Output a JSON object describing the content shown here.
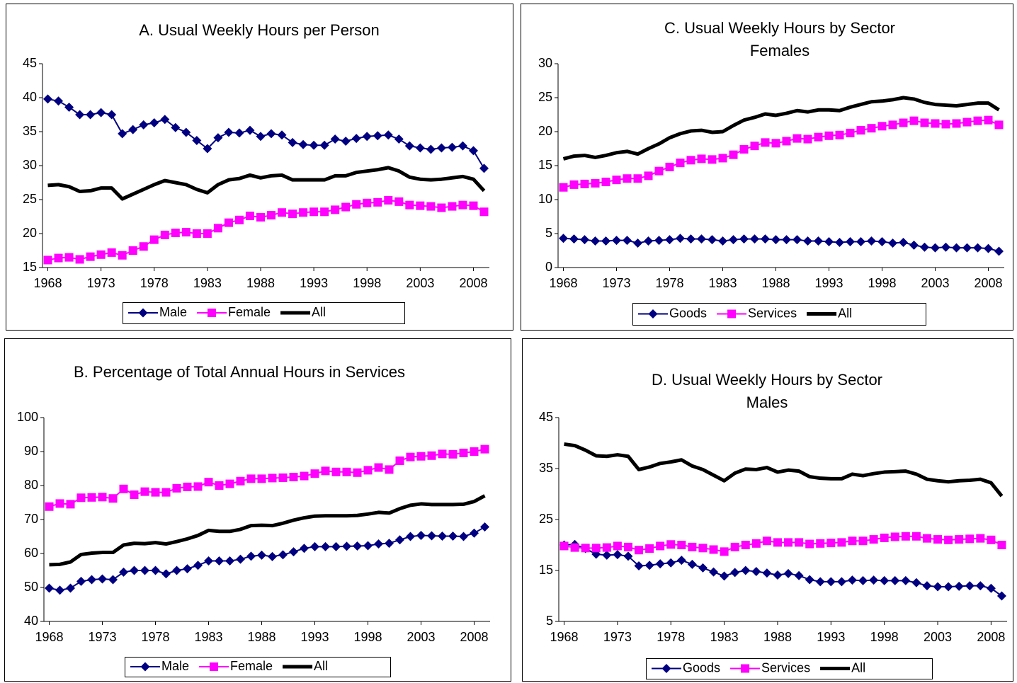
{
  "chart_data": [
    {
      "type": "line",
      "title": "A. Usual Weekly Hours per Person",
      "x": [
        1968,
        1969,
        1970,
        1971,
        1972,
        1973,
        1974,
        1975,
        1976,
        1977,
        1978,
        1979,
        1980,
        1981,
        1982,
        1983,
        1984,
        1985,
        1986,
        1987,
        1988,
        1989,
        1990,
        1991,
        1992,
        1993,
        1994,
        1995,
        1996,
        1997,
        1998,
        1999,
        2000,
        2001,
        2002,
        2003,
        2004,
        2005,
        2006,
        2007,
        2008,
        2009
      ],
      "xlim": [
        1967.5,
        2009.5
      ],
      "xticks": [
        1968,
        1973,
        1978,
        1983,
        1988,
        1993,
        1998,
        2003,
        2008
      ],
      "ylim": [
        15,
        45
      ],
      "yticks": [
        15,
        20,
        25,
        30,
        35,
        40,
        45
      ],
      "series": [
        {
          "name": "Male",
          "color": "#000080",
          "marker": "diamond",
          "values": [
            39.8,
            39.5,
            38.6,
            37.5,
            37.5,
            37.8,
            37.5,
            34.7,
            35.3,
            36.0,
            36.3,
            36.8,
            35.6,
            34.9,
            33.7,
            32.5,
            34.1,
            34.9,
            34.8,
            35.2,
            34.3,
            34.7,
            34.5,
            33.4,
            33.1,
            33.0,
            33.0,
            33.9,
            33.6,
            34.0,
            34.3,
            34.4,
            34.5,
            33.9,
            32.9,
            32.6,
            32.4,
            32.6,
            32.7,
            32.9,
            32.2,
            29.6
          ]
        },
        {
          "name": "Female",
          "color": "#ff00ff",
          "marker": "square",
          "values": [
            16.1,
            16.4,
            16.5,
            16.2,
            16.6,
            16.9,
            17.2,
            16.8,
            17.5,
            18.1,
            19.1,
            19.8,
            20.1,
            20.2,
            20.0,
            20.0,
            20.8,
            21.6,
            22.0,
            22.6,
            22.4,
            22.7,
            23.1,
            22.9,
            23.1,
            23.2,
            23.2,
            23.5,
            23.9,
            24.3,
            24.5,
            24.6,
            24.9,
            24.7,
            24.2,
            24.1,
            24.0,
            23.8,
            24.0,
            24.2,
            24.1,
            23.2
          ]
        },
        {
          "name": "All",
          "color": "#000000",
          "marker": "none",
          "values": [
            27.1,
            27.2,
            26.9,
            26.2,
            26.3,
            26.7,
            26.7,
            25.1,
            25.8,
            26.5,
            27.2,
            27.8,
            27.5,
            27.2,
            26.5,
            26.0,
            27.2,
            27.9,
            28.1,
            28.6,
            28.2,
            28.5,
            28.6,
            27.9,
            27.9,
            27.9,
            27.9,
            28.5,
            28.5,
            29.0,
            29.2,
            29.4,
            29.7,
            29.2,
            28.3,
            28.0,
            27.9,
            28.0,
            28.2,
            28.4,
            28.0,
            26.3
          ]
        }
      ]
    },
    {
      "type": "line",
      "title": "C. Usual Weekly Hours by Sector",
      "subtitle": "Females",
      "x": [
        1968,
        1969,
        1970,
        1971,
        1972,
        1973,
        1974,
        1975,
        1976,
        1977,
        1978,
        1979,
        1980,
        1981,
        1982,
        1983,
        1984,
        1985,
        1986,
        1987,
        1988,
        1989,
        1990,
        1991,
        1992,
        1993,
        1994,
        1995,
        1996,
        1997,
        1998,
        1999,
        2000,
        2001,
        2002,
        2003,
        2004,
        2005,
        2006,
        2007,
        2008,
        2009
      ],
      "xlim": [
        1967.5,
        2009.5
      ],
      "xticks": [
        1968,
        1973,
        1978,
        1983,
        1988,
        1993,
        1998,
        2003,
        2008
      ],
      "ylim": [
        0,
        30
      ],
      "yticks": [
        0,
        5,
        10,
        15,
        20,
        25,
        30
      ],
      "series": [
        {
          "name": "Goods",
          "color": "#000080",
          "marker": "diamond",
          "values": [
            4.3,
            4.2,
            4.1,
            3.9,
            3.9,
            4.0,
            4.0,
            3.6,
            3.9,
            4.0,
            4.1,
            4.3,
            4.2,
            4.2,
            4.1,
            3.9,
            4.1,
            4.2,
            4.2,
            4.2,
            4.1,
            4.1,
            4.1,
            3.9,
            3.9,
            3.8,
            3.7,
            3.8,
            3.8,
            3.9,
            3.8,
            3.6,
            3.7,
            3.3,
            3.0,
            2.9,
            3.0,
            2.9,
            2.9,
            2.9,
            2.8,
            2.4
          ]
        },
        {
          "name": "Services",
          "color": "#ff00ff",
          "marker": "square",
          "values": [
            11.8,
            12.2,
            12.3,
            12.4,
            12.6,
            12.9,
            13.1,
            13.1,
            13.5,
            14.2,
            14.8,
            15.4,
            15.8,
            16.0,
            15.9,
            16.1,
            16.6,
            17.4,
            17.9,
            18.4,
            18.3,
            18.6,
            19.0,
            18.9,
            19.2,
            19.4,
            19.5,
            19.8,
            20.2,
            20.5,
            20.8,
            21.0,
            21.3,
            21.6,
            21.3,
            21.2,
            21.1,
            21.2,
            21.4,
            21.6,
            21.7,
            21.0
          ]
        },
        {
          "name": "All",
          "color": "#000000",
          "marker": "none",
          "values": [
            16.0,
            16.4,
            16.5,
            16.2,
            16.5,
            16.9,
            17.1,
            16.7,
            17.5,
            18.2,
            19.1,
            19.7,
            20.1,
            20.2,
            19.9,
            20.0,
            20.9,
            21.7,
            22.1,
            22.6,
            22.4,
            22.7,
            23.1,
            22.9,
            23.2,
            23.2,
            23.1,
            23.6,
            24.0,
            24.4,
            24.5,
            24.7,
            25.0,
            24.8,
            24.3,
            24.0,
            23.9,
            23.8,
            24.0,
            24.2,
            24.2,
            23.2
          ]
        }
      ]
    },
    {
      "type": "line",
      "title": "B. Percentage of Total Annual Hours in Services",
      "x": [
        1968,
        1969,
        1970,
        1971,
        1972,
        1973,
        1974,
        1975,
        1976,
        1977,
        1978,
        1979,
        1980,
        1981,
        1982,
        1983,
        1984,
        1985,
        1986,
        1987,
        1988,
        1989,
        1990,
        1991,
        1992,
        1993,
        1994,
        1995,
        1996,
        1997,
        1998,
        1999,
        2000,
        2001,
        2002,
        2003,
        2004,
        2005,
        2006,
        2007,
        2008,
        2009
      ],
      "xlim": [
        1967.5,
        2009.5
      ],
      "xticks": [
        1968,
        1973,
        1978,
        1983,
        1988,
        1993,
        1998,
        2003,
        2008
      ],
      "ylim": [
        40,
        100
      ],
      "yticks": [
        40,
        50,
        60,
        70,
        80,
        90,
        100
      ],
      "series": [
        {
          "name": "Male",
          "color": "#000080",
          "marker": "diamond",
          "values": [
            49.8,
            49.2,
            49.8,
            51.8,
            52.3,
            52.5,
            52.3,
            54.5,
            55.0,
            55.0,
            55.0,
            54.0,
            55.0,
            55.5,
            56.5,
            57.8,
            57.8,
            57.8,
            58.3,
            59.2,
            59.5,
            59.1,
            59.6,
            60.5,
            61.5,
            62.0,
            62.0,
            62.0,
            62.1,
            62.2,
            62.3,
            62.8,
            63.0,
            64.0,
            65.0,
            65.3,
            65.2,
            65.1,
            65.1,
            65.0,
            66.0,
            67.8
          ]
        },
        {
          "name": "Female",
          "color": "#ff00ff",
          "marker": "square",
          "values": [
            73.8,
            74.7,
            74.5,
            76.4,
            76.5,
            76.6,
            76.2,
            79.0,
            77.3,
            78.2,
            78.0,
            78.0,
            79.2,
            79.6,
            79.7,
            81.0,
            80.0,
            80.5,
            81.3,
            82.0,
            82.0,
            82.2,
            82.3,
            82.5,
            82.8,
            83.5,
            84.3,
            84.0,
            84.0,
            83.8,
            84.5,
            85.3,
            84.7,
            87.3,
            88.4,
            88.6,
            88.8,
            89.3,
            89.2,
            89.6,
            90.0,
            90.7
          ]
        },
        {
          "name": "All",
          "color": "#000000",
          "marker": "none",
          "values": [
            56.7,
            56.8,
            57.5,
            59.7,
            60.1,
            60.3,
            60.3,
            62.5,
            63.0,
            62.9,
            63.2,
            62.8,
            63.5,
            64.3,
            65.3,
            66.8,
            66.5,
            66.5,
            67.1,
            68.2,
            68.3,
            68.2,
            68.9,
            69.8,
            70.5,
            71.0,
            71.1,
            71.1,
            71.1,
            71.2,
            71.6,
            72.1,
            71.9,
            73.2,
            74.2,
            74.6,
            74.4,
            74.4,
            74.4,
            74.5,
            75.3,
            77.0
          ]
        }
      ]
    },
    {
      "type": "line",
      "title": "D. Usual Weekly Hours by Sector",
      "subtitle": "Males",
      "x": [
        1968,
        1969,
        1970,
        1971,
        1972,
        1973,
        1974,
        1975,
        1976,
        1977,
        1978,
        1979,
        1980,
        1981,
        1982,
        1983,
        1984,
        1985,
        1986,
        1987,
        1988,
        1989,
        1990,
        1991,
        1992,
        1993,
        1994,
        1995,
        1996,
        1997,
        1998,
        1999,
        2000,
        2001,
        2002,
        2003,
        2004,
        2005,
        2006,
        2007,
        2008,
        2009
      ],
      "xlim": [
        1967.5,
        2009.5
      ],
      "xticks": [
        1968,
        1973,
        1978,
        1983,
        1988,
        1993,
        1998,
        2003,
        2008
      ],
      "ylim": [
        5,
        45
      ],
      "yticks": [
        5,
        15,
        25,
        35,
        45
      ],
      "series": [
        {
          "name": "Goods",
          "color": "#000080",
          "marker": "diamond",
          "values": [
            20.0,
            20.1,
            19.3,
            18.2,
            18.0,
            18.1,
            17.8,
            15.9,
            16.0,
            16.3,
            16.5,
            17.0,
            16.2,
            15.5,
            14.7,
            13.9,
            14.6,
            15.0,
            14.8,
            14.5,
            14.1,
            14.4,
            14.0,
            13.2,
            12.8,
            12.8,
            12.8,
            13.1,
            13.0,
            13.1,
            13.0,
            13.0,
            13.0,
            12.6,
            12.0,
            11.8,
            11.8,
            11.9,
            12.0,
            12.0,
            11.5,
            10.0
          ]
        },
        {
          "name": "Services",
          "color": "#ff00ff",
          "marker": "square",
          "values": [
            19.8,
            19.5,
            19.4,
            19.4,
            19.5,
            19.8,
            19.6,
            19.0,
            19.3,
            19.8,
            20.1,
            20.0,
            19.6,
            19.4,
            19.1,
            18.7,
            19.6,
            20.0,
            20.3,
            20.8,
            20.5,
            20.5,
            20.5,
            20.2,
            20.3,
            20.4,
            20.5,
            20.8,
            20.8,
            21.1,
            21.4,
            21.6,
            21.7,
            21.7,
            21.3,
            21.1,
            21.0,
            21.1,
            21.2,
            21.3,
            21.0,
            20.0
          ]
        },
        {
          "name": "All",
          "color": "#000000",
          "marker": "none",
          "values": [
            39.8,
            39.5,
            38.6,
            37.5,
            37.4,
            37.7,
            37.4,
            34.8,
            35.3,
            36.0,
            36.3,
            36.7,
            35.5,
            34.8,
            33.7,
            32.6,
            34.1,
            34.9,
            34.8,
            35.2,
            34.3,
            34.7,
            34.5,
            33.4,
            33.1,
            33.0,
            33.0,
            33.9,
            33.6,
            34.0,
            34.3,
            34.4,
            34.5,
            33.9,
            32.9,
            32.6,
            32.4,
            32.6,
            32.7,
            32.9,
            32.2,
            29.6
          ]
        }
      ]
    }
  ]
}
